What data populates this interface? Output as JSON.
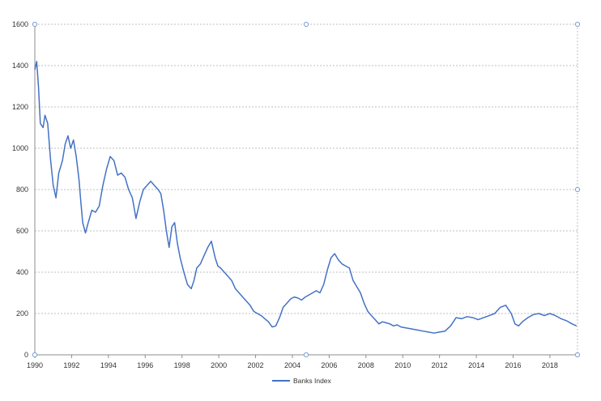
{
  "chart_data": {
    "type": "line",
    "title": "",
    "xlabel": "",
    "ylabel": "",
    "xlim": [
      1990,
      2019.5
    ],
    "ylim": [
      0,
      1600
    ],
    "grid": true,
    "legend_position": "bottom",
    "x_ticks": [
      "1990",
      "1992",
      "1994",
      "1996",
      "1998",
      "2000",
      "2002",
      "2004",
      "2006",
      "2008",
      "2010",
      "2012",
      "2014",
      "2016",
      "2018"
    ],
    "y_ticks": [
      "0",
      "200",
      "400",
      "600",
      "800",
      "1000",
      "1200",
      "1400",
      "1600"
    ],
    "series": [
      {
        "name": "Banks Index",
        "color": "#4472c4",
        "x": [
          1990.0,
          1990.1,
          1990.2,
          1990.3,
          1990.45,
          1990.55,
          1990.7,
          1990.85,
          1991.0,
          1991.15,
          1991.3,
          1991.5,
          1991.65,
          1991.8,
          1991.95,
          1992.1,
          1992.25,
          1992.4,
          1992.5,
          1992.6,
          1992.75,
          1992.9,
          1993.1,
          1993.3,
          1993.5,
          1993.7,
          1993.9,
          1994.1,
          1994.3,
          1994.5,
          1994.7,
          1994.9,
          1995.1,
          1995.3,
          1995.5,
          1995.7,
          1995.9,
          1996.1,
          1996.3,
          1996.5,
          1996.7,
          1996.85,
          1997.0,
          1997.15,
          1997.3,
          1997.45,
          1997.6,
          1997.75,
          1997.9,
          1998.1,
          1998.3,
          1998.5,
          1998.65,
          1998.8,
          1999.0,
          1999.2,
          1999.4,
          1999.6,
          1999.8,
          1999.95,
          2000.1,
          2000.3,
          2000.5,
          2000.7,
          2000.9,
          2001.1,
          2001.3,
          2001.5,
          2001.7,
          2001.9,
          2002.1,
          2002.3,
          2002.5,
          2002.7,
          2002.9,
          2003.1,
          2003.3,
          2003.5,
          2003.7,
          2003.9,
          2004.1,
          2004.3,
          2004.5,
          2004.7,
          2004.9,
          2005.1,
          2005.3,
          2005.5,
          2005.7,
          2005.9,
          2006.1,
          2006.3,
          2006.5,
          2006.7,
          2006.9,
          2007.1,
          2007.3,
          2007.5,
          2007.7,
          2007.9,
          2008.1,
          2008.3,
          2008.5,
          2008.7,
          2008.9,
          2009.1,
          2009.3,
          2009.5,
          2009.7,
          2009.9,
          2010.2,
          2010.5,
          2010.8,
          2011.1,
          2011.4,
          2011.7,
          2012.0,
          2012.3,
          2012.6,
          2012.9,
          2013.2,
          2013.5,
          2013.8,
          2014.1,
          2014.4,
          2014.7,
          2015.0,
          2015.3,
          2015.6,
          2015.9,
          2016.1,
          2016.3,
          2016.5,
          2016.8,
          2017.1,
          2017.4,
          2017.7,
          2018.0,
          2018.3,
          2018.6,
          2018.9,
          2019.2,
          2019.45
        ],
        "values": [
          1380,
          1420,
          1300,
          1120,
          1100,
          1160,
          1120,
          950,
          820,
          760,
          880,
          940,
          1020,
          1060,
          1000,
          1040,
          960,
          850,
          740,
          640,
          590,
          640,
          700,
          690,
          720,
          820,
          900,
          960,
          940,
          870,
          880,
          860,
          800,
          760,
          660,
          740,
          800,
          820,
          840,
          820,
          800,
          780,
          700,
          600,
          520,
          620,
          640,
          540,
          470,
          400,
          340,
          320,
          360,
          420,
          440,
          480,
          520,
          550,
          470,
          430,
          420,
          400,
          380,
          360,
          320,
          300,
          280,
          260,
          240,
          210,
          200,
          190,
          175,
          160,
          135,
          140,
          180,
          230,
          250,
          270,
          280,
          275,
          265,
          280,
          290,
          300,
          310,
          300,
          340,
          410,
          470,
          490,
          460,
          440,
          430,
          420,
          360,
          330,
          300,
          250,
          210,
          190,
          170,
          150,
          160,
          155,
          150,
          140,
          145,
          135,
          130,
          125,
          120,
          115,
          110,
          105,
          110,
          115,
          140,
          180,
          175,
          185,
          180,
          170,
          180,
          190,
          200,
          230,
          240,
          200,
          150,
          140,
          160,
          180,
          195,
          200,
          190,
          200,
          190,
          175,
          165,
          150,
          140
        ]
      }
    ]
  }
}
